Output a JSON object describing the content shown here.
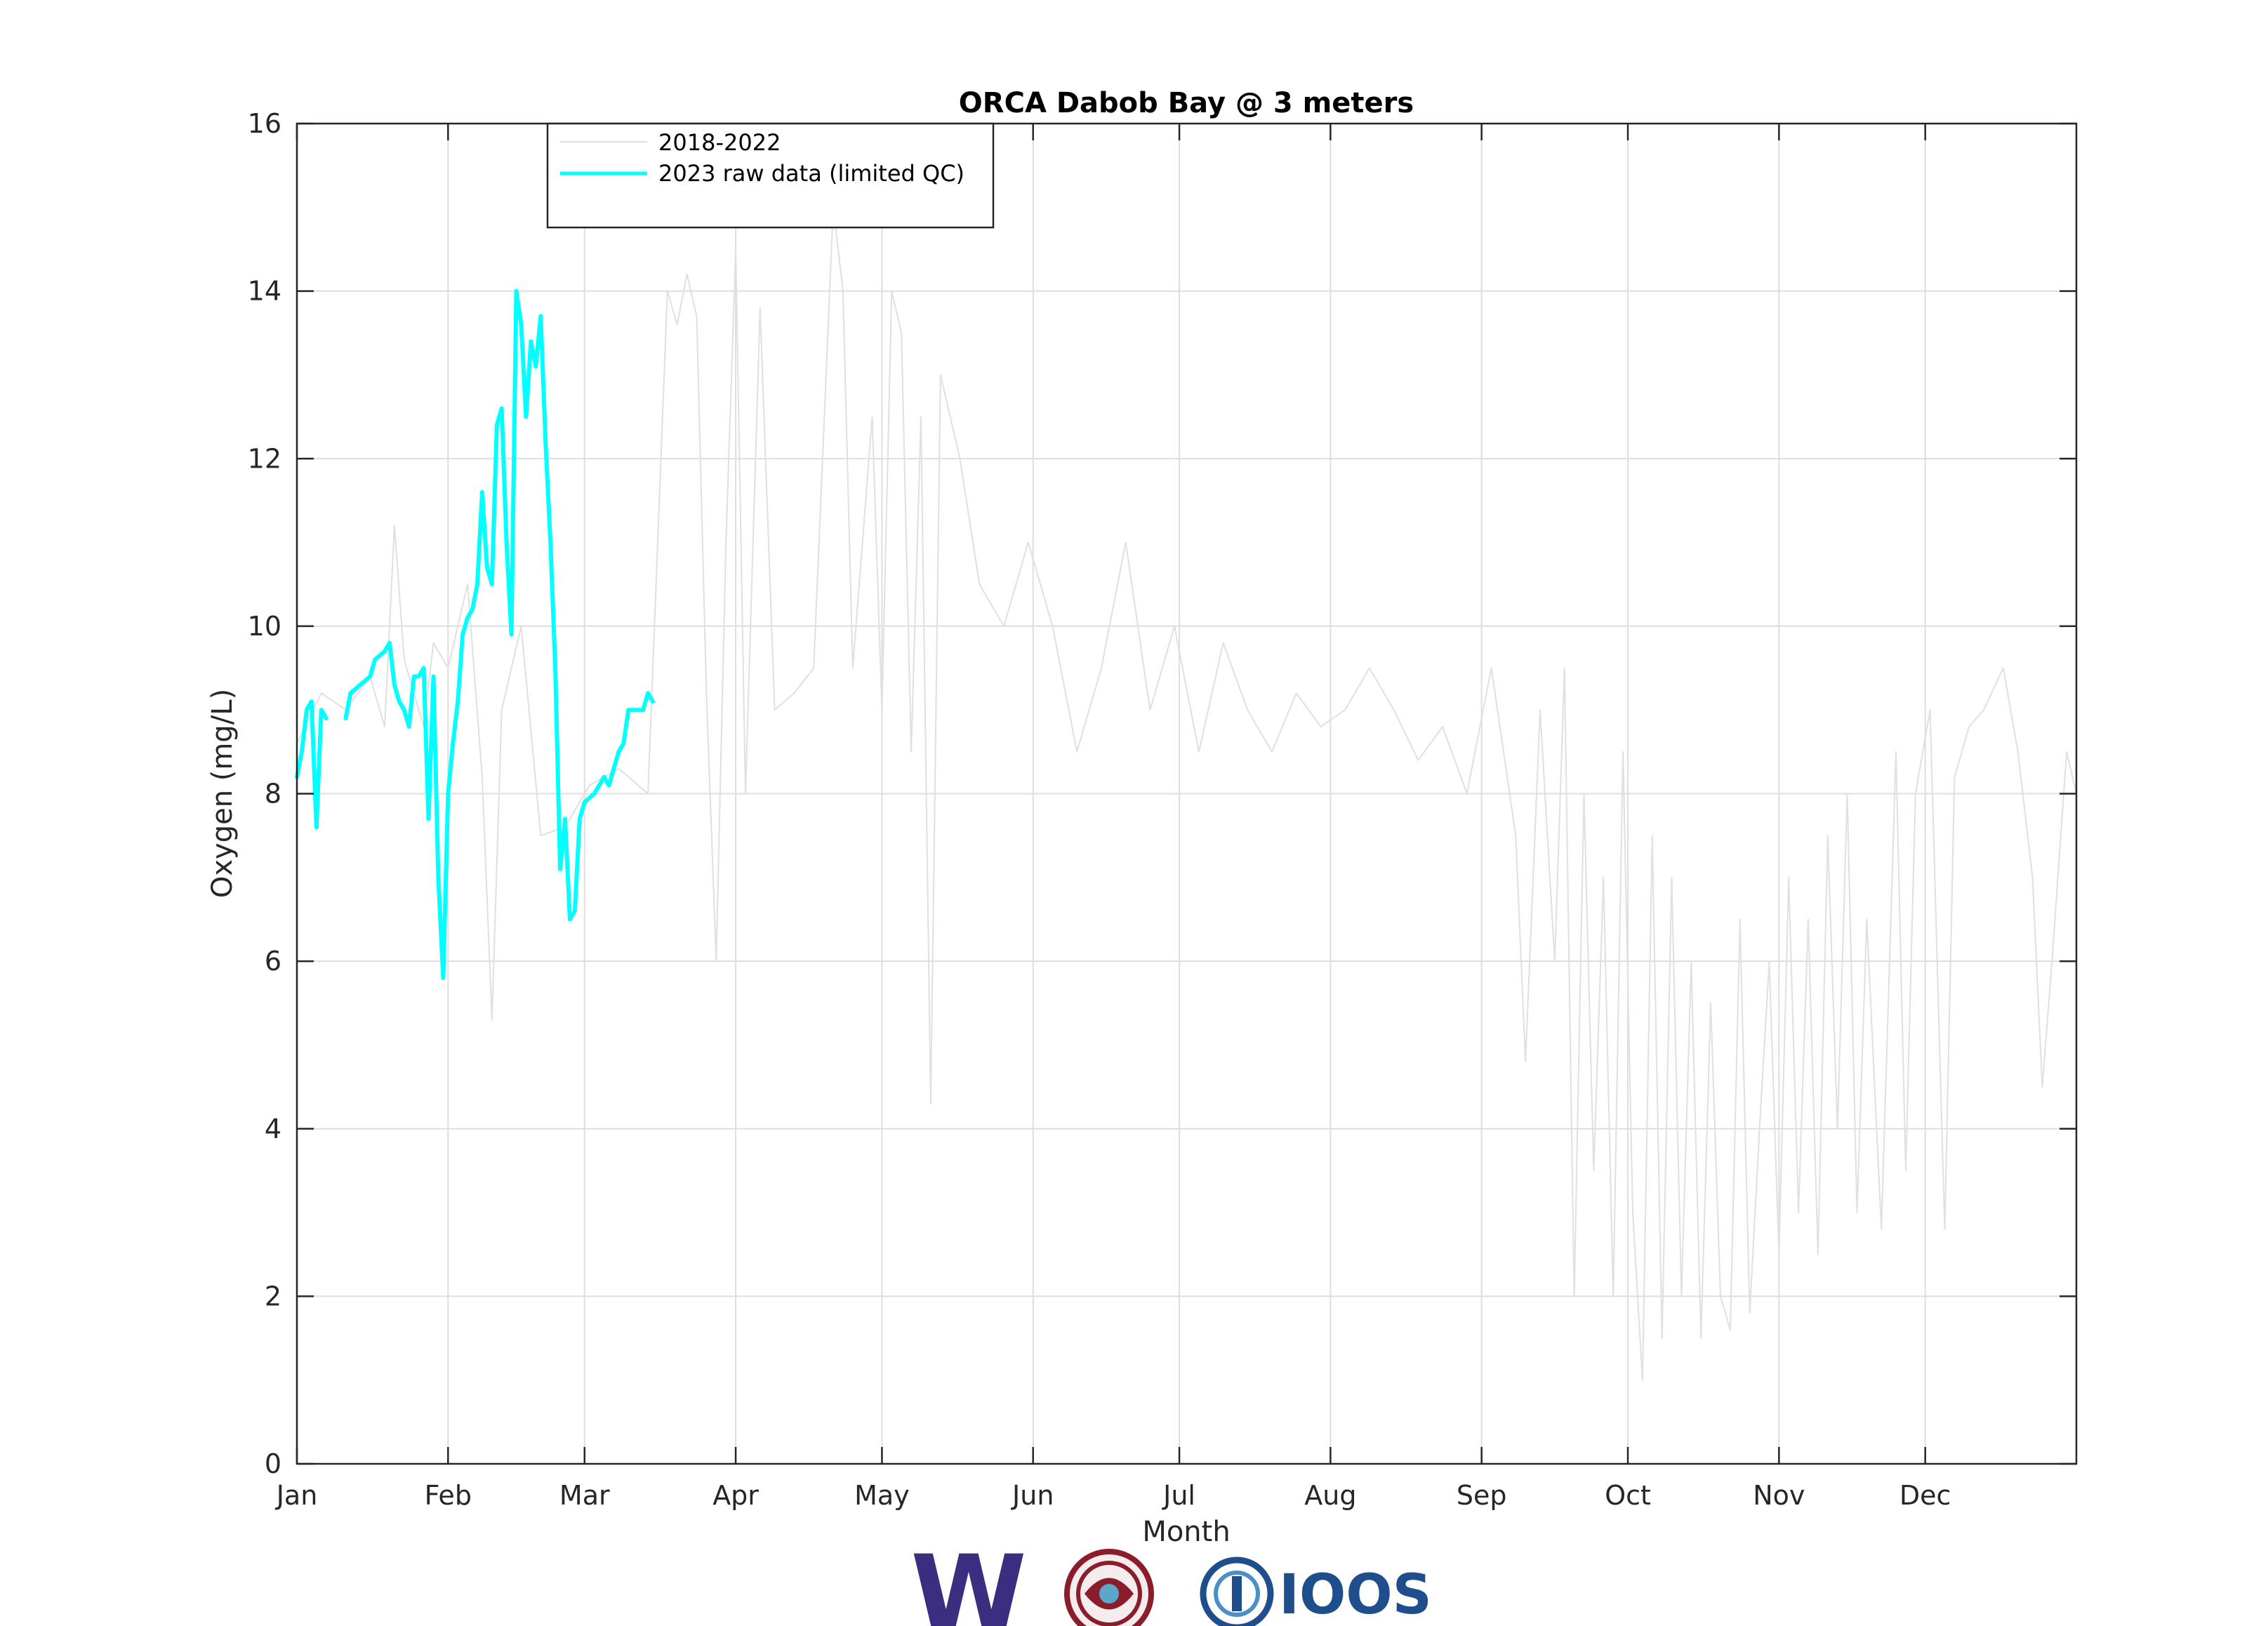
{
  "chart_data": {
    "type": "line",
    "title": "ORCA Dabob Bay @ 3 meters",
    "xlabel": "Month",
    "ylabel": "Oxygen (mg/L)",
    "xlim": [
      0,
      365
    ],
    "ylim": [
      0,
      16
    ],
    "yticks": [
      0,
      2,
      4,
      6,
      8,
      10,
      12,
      14,
      16
    ],
    "grid": true,
    "legend_position": "top-left",
    "month_ticks": [
      {
        "label": "Jan",
        "day": 0
      },
      {
        "label": "Feb",
        "day": 31
      },
      {
        "label": "Mar",
        "day": 59
      },
      {
        "label": "Apr",
        "day": 90
      },
      {
        "label": "May",
        "day": 120
      },
      {
        "label": "Jun",
        "day": 151
      },
      {
        "label": "Jul",
        "day": 181
      },
      {
        "label": "Aug",
        "day": 212
      },
      {
        "label": "Sep",
        "day": 243
      },
      {
        "label": "Oct",
        "day": 273
      },
      {
        "label": "Nov",
        "day": 304
      },
      {
        "label": "Dec",
        "day": 334
      }
    ],
    "series": [
      {
        "name": "2018-2022",
        "color": "#e0e0e0",
        "segments": [
          [
            [
              0,
              8.6
            ],
            [
              5,
              9.2
            ],
            [
              10,
              9.0
            ],
            [
              15,
              9.4
            ],
            [
              18,
              8.8
            ],
            [
              20,
              11.2
            ],
            [
              22,
              9.6
            ],
            [
              26,
              8.8
            ],
            [
              28,
              9.8
            ],
            [
              31,
              9.5
            ],
            [
              35,
              10.5
            ],
            [
              38,
              8.2
            ],
            [
              40,
              5.3
            ],
            [
              42,
              9.0
            ],
            [
              46,
              10.0
            ],
            [
              50,
              7.5
            ],
            [
              55,
              7.6
            ],
            [
              60,
              8.1
            ],
            [
              66,
              8.3
            ],
            [
              72,
              8.0
            ],
            [
              76,
              14.0
            ],
            [
              78,
              13.6
            ],
            [
              80,
              14.2
            ],
            [
              82,
              13.7
            ],
            [
              84,
              9.2
            ],
            [
              86,
              6.0
            ],
            [
              88,
              11.0
            ],
            [
              90,
              14.5
            ],
            [
              92,
              8.0
            ],
            [
              95,
              13.8
            ],
            [
              98,
              9.0
            ],
            [
              102,
              9.2
            ],
            [
              106,
              9.5
            ],
            [
              110,
              15.0
            ],
            [
              112,
              14.0
            ],
            [
              114,
              9.5
            ],
            [
              118,
              12.5
            ],
            [
              120,
              9.0
            ],
            [
              122,
              14.0
            ],
            [
              124,
              13.5
            ],
            [
              126,
              8.5
            ],
            [
              128,
              12.5
            ],
            [
              130,
              4.3
            ],
            [
              132,
              13.0
            ],
            [
              136,
              12.0
            ],
            [
              140,
              10.5
            ],
            [
              145,
              10.0
            ],
            [
              150,
              11.0
            ],
            [
              155,
              10.0
            ],
            [
              160,
              8.5
            ],
            [
              165,
              9.5
            ],
            [
              170,
              11.0
            ],
            [
              175,
              9.0
            ],
            [
              180,
              10.0
            ],
            [
              185,
              8.5
            ],
            [
              190,
              9.8
            ],
            [
              195,
              9.0
            ],
            [
              200,
              8.5
            ],
            [
              205,
              9.2
            ],
            [
              210,
              8.8
            ],
            [
              215,
              9.0
            ],
            [
              220,
              9.5
            ],
            [
              225,
              9.0
            ],
            [
              230,
              8.4
            ],
            [
              235,
              8.8
            ],
            [
              240,
              8.0
            ],
            [
              245,
              9.5
            ],
            [
              250,
              7.5
            ],
            [
              252,
              4.8
            ],
            [
              255,
              9.0
            ],
            [
              258,
              6.0
            ],
            [
              260,
              9.5
            ],
            [
              262,
              2.0
            ],
            [
              264,
              8.0
            ],
            [
              266,
              3.5
            ],
            [
              268,
              7.0
            ],
            [
              270,
              2.0
            ],
            [
              272,
              8.5
            ],
            [
              274,
              3.0
            ],
            [
              276,
              1.0
            ],
            [
              278,
              7.5
            ],
            [
              280,
              1.5
            ],
            [
              282,
              7.0
            ],
            [
              284,
              2.0
            ],
            [
              286,
              6.0
            ],
            [
              288,
              1.5
            ],
            [
              290,
              5.5
            ],
            [
              292,
              2.0
            ],
            [
              294,
              1.6
            ],
            [
              296,
              6.5
            ],
            [
              298,
              1.8
            ],
            [
              300,
              4.0
            ],
            [
              302,
              6.0
            ],
            [
              304,
              2.5
            ],
            [
              306,
              7.0
            ],
            [
              308,
              3.0
            ],
            [
              310,
              6.5
            ],
            [
              312,
              2.5
            ],
            [
              314,
              7.5
            ],
            [
              316,
              4.0
            ],
            [
              318,
              8.0
            ],
            [
              320,
              3.0
            ],
            [
              322,
              6.5
            ],
            [
              325,
              2.8
            ],
            [
              328,
              8.5
            ],
            [
              330,
              3.5
            ],
            [
              332,
              8.0
            ],
            [
              335,
              9.0
            ],
            [
              338,
              2.8
            ],
            [
              340,
              8.2
            ],
            [
              343,
              8.8
            ],
            [
              346,
              9.0
            ],
            [
              350,
              9.5
            ],
            [
              353,
              8.5
            ],
            [
              356,
              7.0
            ],
            [
              358,
              4.5
            ],
            [
              360,
              6.0
            ],
            [
              363,
              8.5
            ],
            [
              365,
              8.0
            ]
          ]
        ]
      },
      {
        "name": "2023 raw data (limited QC)",
        "color": "#00ffff",
        "segments": [
          [
            [
              0,
              8.2
            ],
            [
              1,
              8.5
            ],
            [
              2,
              9.0
            ],
            [
              3,
              9.1
            ],
            [
              4,
              7.6
            ],
            [
              5,
              9.0
            ],
            [
              6,
              8.9
            ]
          ],
          [
            [
              10,
              8.9
            ],
            [
              11,
              9.2
            ],
            [
              13,
              9.3
            ],
            [
              15,
              9.4
            ],
            [
              16,
              9.6
            ],
            [
              18,
              9.7
            ],
            [
              19,
              9.8
            ],
            [
              20,
              9.3
            ],
            [
              21,
              9.1
            ],
            [
              22,
              9.0
            ],
            [
              23,
              8.8
            ],
            [
              24,
              9.4
            ],
            [
              25,
              9.4
            ],
            [
              26,
              9.5
            ],
            [
              27,
              7.7
            ],
            [
              28,
              9.4
            ],
            [
              29,
              7.0
            ],
            [
              30,
              5.8
            ],
            [
              31,
              8.0
            ],
            [
              32,
              8.6
            ],
            [
              33,
              9.1
            ],
            [
              34,
              9.9
            ],
            [
              35,
              10.1
            ],
            [
              36,
              10.2
            ],
            [
              37,
              10.5
            ],
            [
              38,
              11.6
            ],
            [
              39,
              10.7
            ],
            [
              40,
              10.5
            ],
            [
              41,
              12.4
            ],
            [
              42,
              12.6
            ],
            [
              43,
              11.0
            ],
            [
              44,
              9.9
            ],
            [
              45,
              14.0
            ],
            [
              46,
              13.6
            ],
            [
              47,
              12.5
            ],
            [
              48,
              13.4
            ],
            [
              49,
              13.1
            ],
            [
              50,
              13.7
            ],
            [
              51,
              12.2
            ],
            [
              52,
              11.0
            ],
            [
              53,
              9.5
            ],
            [
              54,
              7.1
            ],
            [
              55,
              7.7
            ],
            [
              56,
              6.5
            ],
            [
              57,
              6.6
            ],
            [
              58,
              7.7
            ],
            [
              59,
              7.9
            ],
            [
              61,
              8.0
            ],
            [
              62,
              8.1
            ],
            [
              63,
              8.2
            ],
            [
              64,
              8.1
            ],
            [
              65,
              8.3
            ],
            [
              66,
              8.5
            ],
            [
              67,
              8.6
            ],
            [
              68,
              9.0
            ],
            [
              70,
              9.0
            ],
            [
              71,
              9.0
            ],
            [
              72,
              9.2
            ],
            [
              73,
              9.1
            ]
          ]
        ]
      }
    ]
  },
  "logos": {
    "uw_letter": "W",
    "ioos_text": "IOOS"
  },
  "colors": {
    "uw_purple": "#3b2d80",
    "ioos_blue": "#1f4e8c",
    "nw_red": "#8b1c2b"
  }
}
